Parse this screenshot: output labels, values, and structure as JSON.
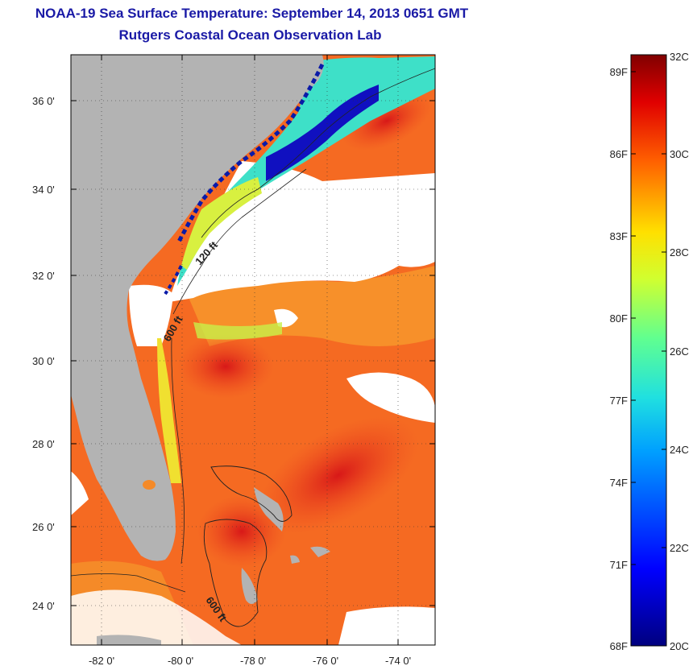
{
  "title": "NOAA-19 Sea Surface Temperature:  September 14, 2013 0651 GMT",
  "subtitle": "Rutgers Coastal Ocean Observation Lab",
  "lat_ticks": [
    "24 0'",
    "26 0'",
    "28 0'",
    "30 0'",
    "32 0'",
    "34 0'",
    "36 0'"
  ],
  "lon_ticks": [
    "-82 0'",
    "-80 0'",
    "-78 0'",
    "-76 0'",
    "-74 0'"
  ],
  "isobath_labels": [
    "120 ft",
    "600 ft",
    "600 ft"
  ],
  "colorbar": {
    "fahrenheit": [
      "89F",
      "86F",
      "83F",
      "80F",
      "77F",
      "74F",
      "71F",
      "68F"
    ],
    "celsius": [
      "32C",
      "30C",
      "28C",
      "26C",
      "24C",
      "22C",
      "20C"
    ]
  },
  "colors": {
    "title": "#1a1aa6",
    "land": "#b3b3b3",
    "cloud_mask": "#ffffff"
  }
}
